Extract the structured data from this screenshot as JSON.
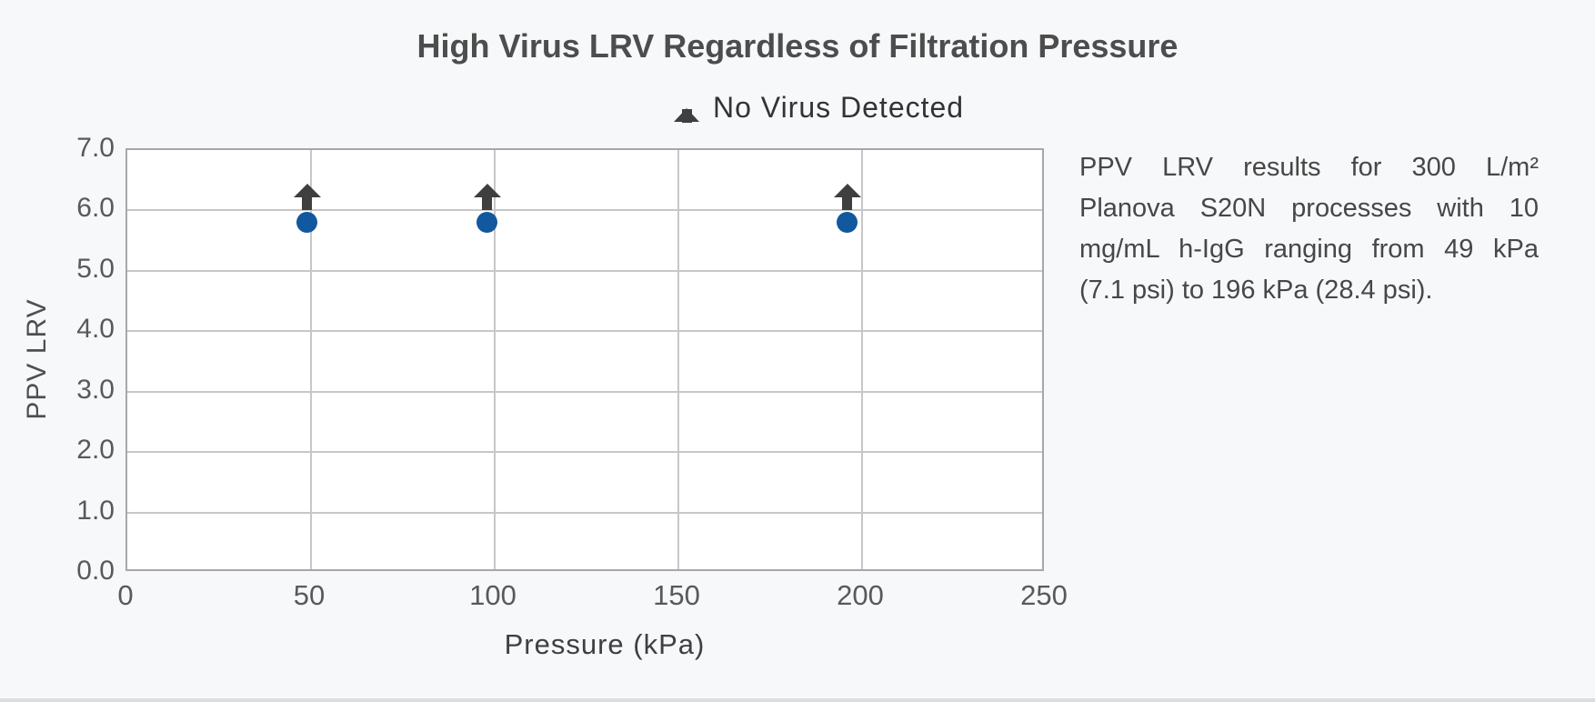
{
  "title": "High Virus LRV Regardless of Filtration Pressure",
  "legend": {
    "marker": "up-arrow",
    "label": "No Virus Detected"
  },
  "caption": {
    "full_text": "PPV LRV results for 300 L/m² Planova S20N processes with 10 mg/mL h-IgG ranging from 49 kPa (7.1 psi) to 196 kPa (28.4 psi).",
    "lines": [
      "PPV LRV results for 300 L/m²",
      "Planova S20N processes with 10",
      "mg/mL h-IgG ranging from 49 kPa",
      "(7.1 psi) to 196 kPa (28.4 psi)."
    ]
  },
  "chart_data": {
    "type": "scatter",
    "title": "High Virus LRV Regardless of Filtration Pressure",
    "xlabel": "Pressure (kPa)",
    "ylabel": "PPV LRV",
    "xlim": [
      0,
      250
    ],
    "ylim": [
      0.0,
      7.0
    ],
    "xticks": {
      "values": [
        0,
        50,
        100,
        150,
        200,
        250
      ],
      "labels": [
        "0",
        "50",
        "100",
        "150",
        "200",
        "250"
      ]
    },
    "yticks": {
      "values": [
        0,
        1,
        2,
        3,
        4,
        5,
        6,
        7
      ],
      "labels": [
        "0.0",
        "1.0",
        "2.0",
        "3.0",
        "4.0",
        "5.0",
        "6.0",
        "7.0"
      ]
    },
    "grid": true,
    "legend_position": "top-center",
    "series": [
      {
        "name": "No Virus Detected",
        "marker": "filled-circle-with-up-arrow",
        "points": [
          {
            "x": 49,
            "y": 5.8
          },
          {
            "x": 98,
            "y": 5.8
          },
          {
            "x": 196,
            "y": 5.8
          }
        ]
      }
    ],
    "colors": {
      "point_fill": "#11589e",
      "arrow": "#3f3f3f",
      "gridline": "#c7c7ca",
      "plot_border": "#a7a7ab",
      "plot_background": "#ffffff",
      "page_background": "#f7f8fa",
      "title_text": "#4d4d4d",
      "tick_text": "#595959"
    }
  }
}
